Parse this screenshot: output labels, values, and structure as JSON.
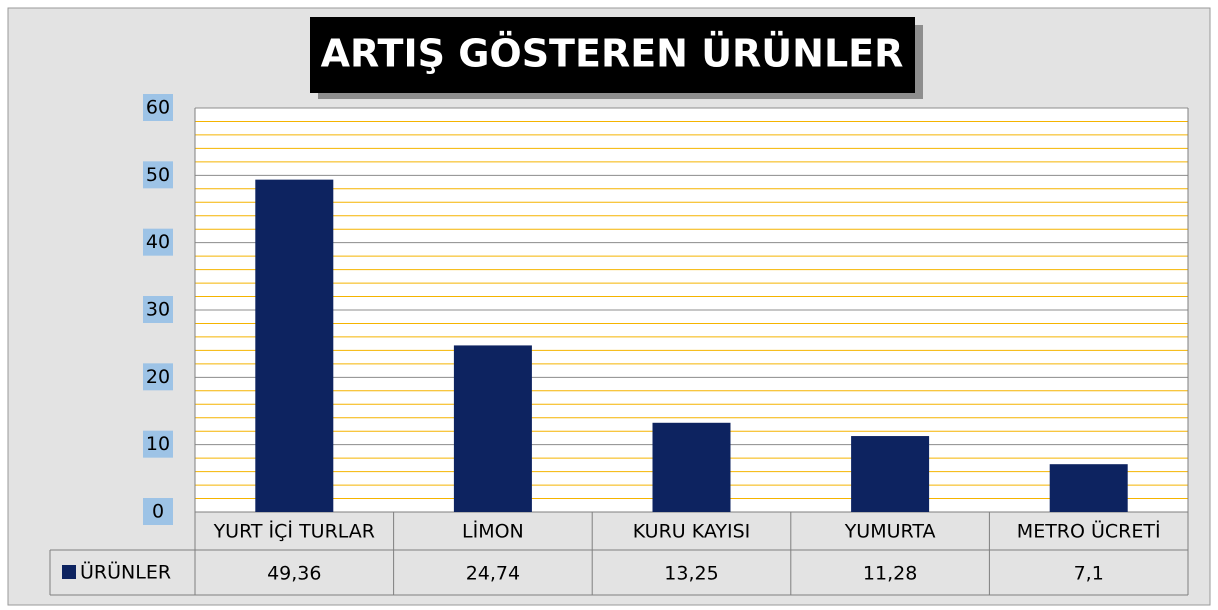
{
  "chart_data": {
    "type": "bar",
    "title": "ARTIŞ GÖSTEREN ÜRÜNLER",
    "categories": [
      "YURT İÇİ TURLAR",
      "LİMON",
      "KURU KAYISI",
      "YUMURTA",
      "METRO ÜCRETİ"
    ],
    "series": [
      {
        "name": "ÜRÜNLER",
        "color": "#0d2360",
        "values": [
          49.36,
          24.74,
          13.25,
          11.28,
          7.1
        ],
        "value_labels": [
          "49,36",
          "24,74",
          "13,25",
          "11,28",
          "7,1"
        ]
      }
    ],
    "ylim": [
      0,
      60
    ],
    "yticks": [
      0,
      10,
      20,
      30,
      40,
      50,
      60
    ],
    "minor_yticks": [
      2,
      4,
      6,
      8,
      12,
      14,
      16,
      18,
      22,
      24,
      26,
      28,
      32,
      34,
      36,
      38,
      42,
      44,
      46,
      48,
      52,
      54,
      56,
      58
    ],
    "grid": true
  }
}
